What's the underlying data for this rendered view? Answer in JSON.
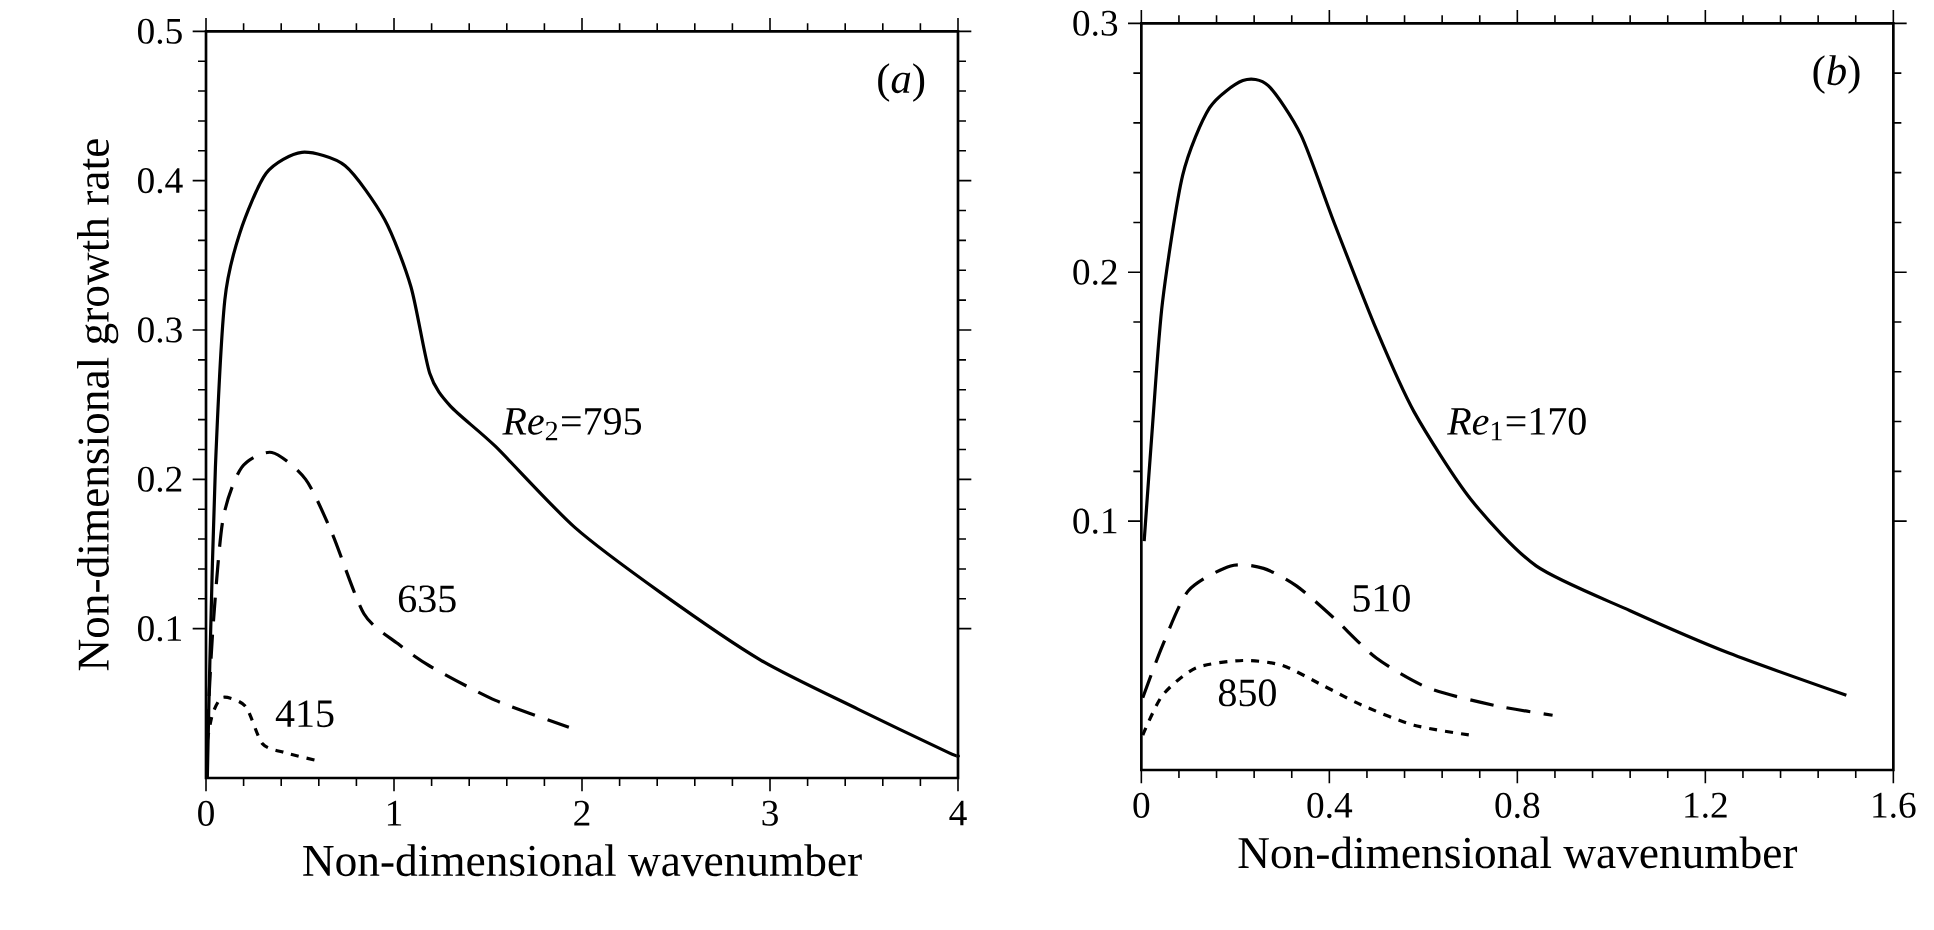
{
  "chart_data": [
    {
      "type": "line",
      "title": "(*a*)",
      "xlabel": "Non-dimensional wavenumber",
      "ylabel": "Non-dimensional growth rate",
      "xlim": [
        0,
        4
      ],
      "ylim": [
        0,
        0.5
      ],
      "xticks": [
        0,
        1,
        2,
        3,
        4
      ],
      "yticks": [
        0.1,
        0.2,
        0.3,
        0.4,
        0.5
      ],
      "series": [
        {
          "name": "*Re*$_{2}$=795",
          "color": "#000000",
          "line_style": "solid",
          "x": [
            0.007,
            0.02,
            0.05,
            0.1,
            0.18,
            0.32,
            0.51,
            0.74,
            0.95,
            1.09,
            1.19,
            1.3,
            1.54,
            1.96,
            2.42,
            2.95,
            3.47,
            3.95,
            4.0
          ],
          "values": [
            0.0,
            0.075,
            0.208,
            0.32,
            0.365,
            0.405,
            0.419,
            0.41,
            0.374,
            0.329,
            0.271,
            0.249,
            0.222,
            0.168,
            0.124,
            0.079,
            0.046,
            0.017,
            0.015
          ]
        },
        {
          "name": "635",
          "color": "#000000",
          "line_style": "dashed",
          "x": [
            0.007,
            0.035,
            0.09,
            0.19,
            0.35,
            0.53,
            0.67,
            0.84,
            1.02,
            1.19,
            1.54,
            1.93
          ],
          "values": [
            0.03,
            0.097,
            0.173,
            0.208,
            0.218,
            0.2,
            0.164,
            0.11,
            0.09,
            0.075,
            0.052,
            0.034
          ]
        },
        {
          "name": "415",
          "color": "#000000",
          "line_style": "dotted",
          "x": [
            0.007,
            0.035,
            0.09,
            0.21,
            0.3,
            0.42,
            0.58
          ],
          "values": [
            0.025,
            0.043,
            0.054,
            0.048,
            0.023,
            0.017,
            0.012
          ]
        }
      ]
    },
    {
      "type": "line",
      "title": "(*b*)",
      "xlabel": "Non-dimensional wavenumber",
      "xlim": [
        0,
        1.6
      ],
      "ylim": [
        0,
        0.3
      ],
      "xticks": [
        0,
        0.4,
        0.8,
        1.2,
        1.6
      ],
      "yticks": [
        0.1,
        0.2,
        0.3
      ],
      "series": [
        {
          "name": "*Re*$_{1}$=170",
          "color": "#000000",
          "line_style": "solid",
          "x": [
            0.006,
            0.024,
            0.045,
            0.088,
            0.145,
            0.216,
            0.27,
            0.34,
            0.41,
            0.5,
            0.58,
            0.7,
            0.84,
            1.04,
            1.25,
            1.5
          ],
          "values": [
            0.092,
            0.139,
            0.188,
            0.239,
            0.266,
            0.277,
            0.275,
            0.255,
            0.22,
            0.177,
            0.144,
            0.109,
            0.082,
            0.064,
            0.047,
            0.03
          ]
        },
        {
          "name": "510",
          "color": "#000000",
          "line_style": "dashed",
          "x": [
            0.003,
            0.045,
            0.1,
            0.19,
            0.26,
            0.33,
            0.41,
            0.5,
            0.61,
            0.75,
            0.875
          ],
          "values": [
            0.029,
            0.05,
            0.072,
            0.082,
            0.081,
            0.074,
            0.061,
            0.045,
            0.033,
            0.026,
            0.022
          ]
        },
        {
          "name": "850",
          "color": "#000000",
          "line_style": "dotted",
          "x": [
            0.003,
            0.045,
            0.116,
            0.216,
            0.3,
            0.386,
            0.47,
            0.58,
            0.7
          ],
          "values": [
            0.014,
            0.03,
            0.041,
            0.044,
            0.042,
            0.034,
            0.026,
            0.018,
            0.014
          ]
        }
      ]
    }
  ]
}
